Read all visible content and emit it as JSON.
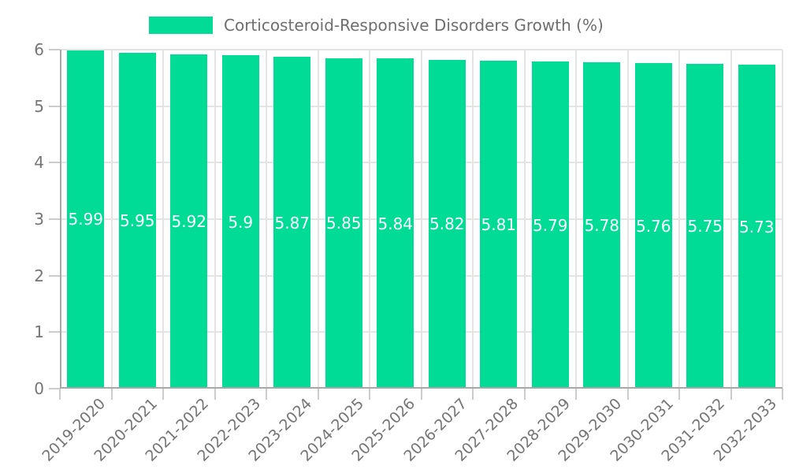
{
  "legend": {
    "label": "Corticosteroid-Responsive Disorders Growth (%)"
  },
  "colors": {
    "bar": "#00DC96",
    "grid": "#e4e4e4",
    "axis": "#a8a8a8",
    "tick_mark": "#cccccc",
    "tick_label": "#757575",
    "legend_text": "#6e6e6e",
    "value_label": "#ffffff",
    "background": "#ffffff"
  },
  "chart_data": {
    "type": "bar",
    "title": "Corticosteroid-Responsive Disorders Growth (%)",
    "legend_position": "top",
    "grid": true,
    "x_label_rotation_deg": -45,
    "bar_label_position": "inside-center",
    "categories": [
      "2019-2020",
      "2020-2021",
      "2021-2022",
      "2022-2023",
      "2023-2024",
      "2024-2025",
      "2025-2026",
      "2026-2027",
      "2027-2028",
      "2028-2029",
      "2029-2030",
      "2030-2031",
      "2031-2032",
      "2032-2033"
    ],
    "values": [
      5.99,
      5.95,
      5.92,
      5.9,
      5.87,
      5.85,
      5.84,
      5.82,
      5.81,
      5.79,
      5.78,
      5.76,
      5.75,
      5.73
    ],
    "value_labels": [
      "5.99",
      "5.95",
      "5.92",
      "5.9",
      "5.87",
      "5.85",
      "5.84",
      "5.82",
      "5.81",
      "5.79",
      "5.78",
      "5.76",
      "5.75",
      "5.73"
    ],
    "xlabel": "",
    "ylabel": "",
    "ylim": [
      0,
      6
    ],
    "yticks": [
      0,
      1,
      2,
      3,
      4,
      5,
      6
    ]
  }
}
